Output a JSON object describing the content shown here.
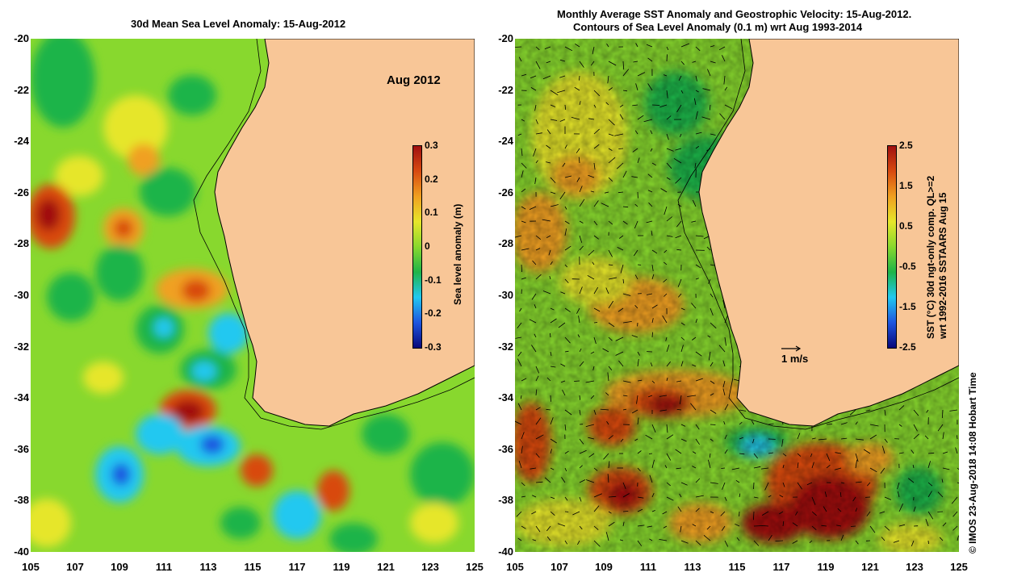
{
  "left_panel": {
    "title": "30d Mean Sea Level Anomaly: 15-Aug-2012",
    "month_label": "Aug 2012",
    "colorbar": {
      "title": "Sea level anomaly (m)",
      "ticks": [
        "0.3",
        "0.2",
        "0.1",
        "0",
        "-0.1",
        "-0.2",
        "-0.3"
      ]
    }
  },
  "right_panel": {
    "title_line1": "Monthly Average SST Anomaly  and Geostrophic Velocity: 15-Aug-2012.",
    "title_line2": "Contours of Sea Level Anomaly (0.1 m) wrt Aug 1993-2014",
    "scale_label": "1 m/s",
    "colorbar": {
      "title_line1": "SST (°C) 30d ngt-only comp. QL>=2",
      "title_line2": "wrt 1992-2016 SSTAARS Aug 15",
      "ticks": [
        "2.5",
        "1.5",
        "0.5",
        "-0.5",
        "-1.5",
        "-2.5"
      ]
    }
  },
  "axes": {
    "y_ticks": [
      "-20",
      "-22",
      "-24",
      "-26",
      "-28",
      "-30",
      "-32",
      "-34",
      "-36",
      "-38",
      "-40"
    ],
    "x_ticks": [
      "105",
      "107",
      "109",
      "111",
      "113",
      "115",
      "117",
      "119",
      "121",
      "123",
      "125"
    ]
  },
  "credit": "© IMOS 23-Aug-2018 14:08 Hobart Time",
  "colors": {
    "land": "#f8c697",
    "ocean_base": "#88d82e",
    "ssla_cmap": [
      "#08087a",
      "#1e56e0",
      "#22c8f0",
      "#1fb448",
      "#88d82e",
      "#e6e62a",
      "#f0a020",
      "#d84a10",
      "#a01010"
    ],
    "sst_cmap": [
      "#08087a",
      "#1e56e0",
      "#22c8f0",
      "#1fb448",
      "#88d82e",
      "#e6e62a",
      "#f0a020",
      "#d84a10",
      "#a01010"
    ]
  }
}
